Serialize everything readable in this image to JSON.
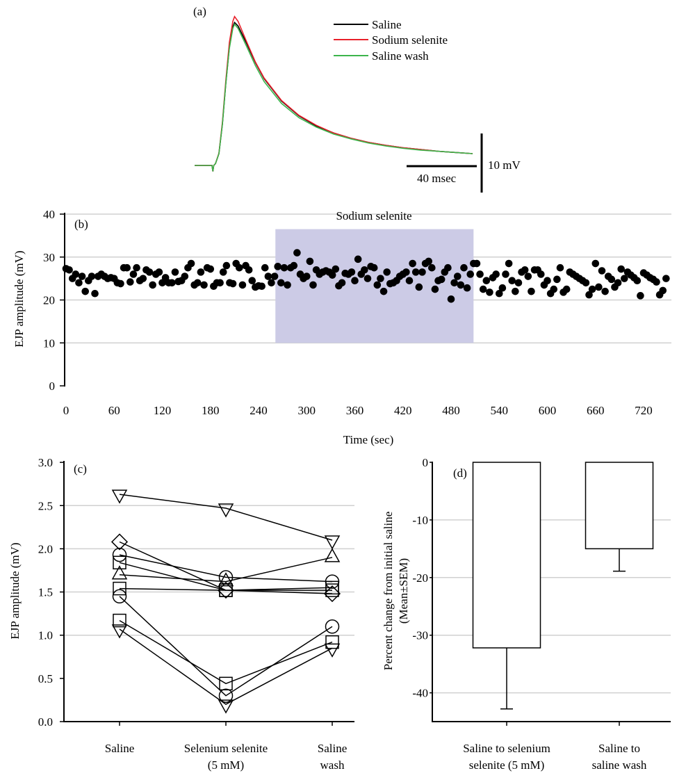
{
  "chart_data": [
    {
      "panel": "(a)",
      "type": "line",
      "legend": {
        "placement": "top-right",
        "entries": [
          "Saline",
          "Sodium selenite",
          "Saline wash"
        ]
      },
      "scale_bars": {
        "time_label": "40 msec",
        "time_value_ms": 40,
        "voltage_label": "10 mV",
        "voltage_value_mv": 10
      },
      "x": [
        -10,
        0,
        0.5,
        1,
        2,
        4,
        6,
        8,
        10,
        12,
        13,
        15,
        20,
        25,
        30,
        40,
        50,
        60,
        70,
        80,
        90,
        100,
        110,
        120,
        130,
        140,
        150
      ],
      "series": [
        {
          "name": "Saline",
          "color": "#000000",
          "values": [
            0,
            0,
            -1.0,
            0,
            0.3,
            2,
            7,
            14,
            20,
            23.5,
            24.2,
            23.6,
            20.6,
            17.4,
            14.7,
            10.9,
            8.4,
            6.7,
            5.5,
            4.6,
            3.9,
            3.4,
            3.0,
            2.7,
            2.4,
            2.2,
            2.0
          ]
        },
        {
          "name": "Sodium selenite",
          "color": "#e8202a",
          "values": [
            0,
            0,
            -1.0,
            0,
            0.3,
            2.1,
            7.3,
            14.5,
            20.8,
            24.4,
            25.2,
            24.4,
            20.9,
            17.5,
            14.8,
            11.0,
            8.5,
            6.8,
            5.5,
            4.6,
            3.9,
            3.4,
            3.0,
            2.7,
            2.4,
            2.2,
            2.0
          ]
        },
        {
          "name": "Saline wash",
          "color": "#3cb44b",
          "values": [
            0,
            0,
            -1.0,
            0,
            0.3,
            2,
            7,
            14,
            19.8,
            23.2,
            23.9,
            23.2,
            20.1,
            16.9,
            14.2,
            10.5,
            8.1,
            6.5,
            5.3,
            4.5,
            3.8,
            3.3,
            2.9,
            2.6,
            2.4,
            2.2,
            2.0
          ]
        }
      ]
    },
    {
      "panel": "(b)",
      "type": "scatter",
      "xlabel": "Time (sec)",
      "ylabel": "EJP amplitude (mV)",
      "xlim": [
        0,
        750
      ],
      "ylim": [
        0,
        40
      ],
      "xticks": [
        "0",
        "60",
        "120",
        "180",
        "240",
        "300",
        "360",
        "420",
        "480",
        "540",
        "600",
        "660",
        "720"
      ],
      "yticks": [
        "0",
        "10",
        "20",
        "30",
        "40"
      ],
      "grid": true,
      "shaded_region": {
        "label": "Sodium selenite",
        "x": [
          261,
          508
        ],
        "y": [
          10,
          36.5
        ],
        "color": "#cccbe6"
      },
      "x": [
        0,
        4,
        8,
        12,
        16,
        20,
        24,
        28,
        32,
        36,
        40,
        44,
        48,
        52,
        56,
        60,
        64,
        68,
        72,
        76,
        80,
        84,
        88,
        92,
        96,
        100,
        104,
        108,
        112,
        116,
        120,
        124,
        128,
        132,
        136,
        140,
        144,
        148,
        152,
        156,
        160,
        164,
        168,
        172,
        176,
        180,
        184,
        188,
        192,
        196,
        200,
        204,
        208,
        212,
        216,
        220,
        224,
        228,
        232,
        236,
        240,
        244,
        248,
        252,
        256,
        260,
        264,
        268,
        272,
        276,
        280,
        284,
        288,
        292,
        296,
        300,
        304,
        308,
        312,
        316,
        320,
        324,
        328,
        332,
        336,
        340,
        344,
        348,
        352,
        356,
        360,
        364,
        368,
        372,
        376,
        380,
        384,
        388,
        392,
        396,
        400,
        404,
        408,
        412,
        416,
        420,
        424,
        428,
        432,
        436,
        440,
        444,
        448,
        452,
        456,
        460,
        464,
        468,
        472,
        476,
        480,
        484,
        488,
        492,
        496,
        500,
        504,
        508,
        512,
        516,
        520,
        524,
        528,
        532,
        536,
        540,
        544,
        548,
        552,
        556,
        560,
        564,
        568,
        572,
        576,
        580,
        584,
        588,
        592,
        596,
        600,
        604,
        608,
        612,
        616,
        620,
        624,
        628,
        632,
        636,
        640,
        644,
        648,
        652,
        656,
        660,
        664,
        668,
        672,
        676,
        680,
        684,
        688,
        692,
        696,
        700,
        704,
        708,
        712,
        716,
        720,
        724,
        728,
        732,
        736,
        740,
        744,
        748
      ],
      "values": [
        27.3,
        27,
        25,
        26,
        24,
        25.5,
        22,
        24.5,
        25.5,
        21.5,
        25.5,
        26,
        25.5,
        25,
        25.2,
        25,
        24,
        23.8,
        27.5,
        27.5,
        24.2,
        26,
        27.5,
        24.5,
        25,
        27,
        26.5,
        23.5,
        26,
        26.5,
        24,
        25.2,
        24,
        24,
        26.5,
        24.3,
        24.5,
        25.5,
        27.5,
        28.5,
        23.5,
        24,
        26.5,
        23.5,
        27.5,
        27.2,
        23.2,
        24,
        24,
        26.5,
        28,
        24,
        23.8,
        28.5,
        27.5,
        23.5,
        28,
        27,
        24.5,
        23,
        23.3,
        23.2,
        27.5,
        25.5,
        24,
        25.5,
        27.8,
        24,
        27.5,
        23.5,
        27.5,
        28,
        31,
        26,
        25,
        25.5,
        29,
        23.5,
        27,
        26,
        26.5,
        26.8,
        26.5,
        25.8,
        27.2,
        23.3,
        24,
        26.2,
        26,
        26.5,
        24.5,
        29.5,
        26,
        27,
        25,
        27.8,
        27.5,
        23.5,
        25,
        22,
        26.5,
        23.8,
        24,
        24.5,
        25.5,
        26,
        26.5,
        24.5,
        28.5,
        26.5,
        23,
        26.5,
        28.5,
        29,
        27.5,
        22.5,
        24.5,
        24.8,
        26.5,
        27.5,
        20.2,
        24,
        25.5,
        23.5,
        27.5,
        22.8,
        26,
        28.5,
        28.5,
        26,
        22.5,
        24.5,
        21.8,
        25.2,
        26,
        21.5,
        22.8,
        26,
        28.5,
        24.5,
        22,
        24,
        26.5,
        27,
        25.5,
        22,
        27,
        27,
        26,
        23.5,
        24.5,
        21.5,
        22.5,
        24.8,
        27.5,
        21.8,
        22.5,
        26.5,
        26,
        25.5,
        25,
        24.5,
        24,
        21.2,
        22.5,
        28.5,
        23,
        26.8,
        22,
        25.5,
        24.8,
        23,
        24,
        27.2,
        25,
        26.5,
        25.8,
        25.2,
        24.5,
        21,
        26.3,
        25.8,
        25.2,
        24.8,
        24.2,
        21.2,
        22.2,
        25
      ]
    },
    {
      "panel": "(c)",
      "type": "line",
      "ylabel": "EJP amplitude (mV)",
      "ylim": [
        0,
        3.0
      ],
      "yticks": [
        "0.0",
        "0.5",
        "1.0",
        "1.5",
        "2.0",
        "2.5",
        "3.0"
      ],
      "grid": true,
      "categories": [
        [
          "Saline"
        ],
        [
          "Selenium selenite",
          "(5 mM)"
        ],
        [
          "Saline",
          "wash"
        ]
      ],
      "series": [
        {
          "marker": "triangle-down",
          "values": [
            2.63,
            2.47,
            2.1
          ]
        },
        {
          "marker": "triangle-up",
          "values": [
            1.7,
            1.62,
            1.9
          ]
        },
        {
          "marker": "diamond",
          "values": [
            2.08,
            1.52,
            1.48
          ]
        },
        {
          "marker": "circle",
          "values": [
            1.93,
            1.67,
            1.62
          ]
        },
        {
          "marker": "square",
          "values": [
            1.84,
            1.52,
            1.55
          ]
        },
        {
          "marker": "square",
          "values": [
            1.54,
            1.52,
            1.52
          ]
        },
        {
          "marker": "circle",
          "values": [
            1.45,
            0.3,
            1.1
          ]
        },
        {
          "marker": "square",
          "values": [
            1.17,
            0.44,
            0.92
          ]
        },
        {
          "marker": "triangle-down",
          "values": [
            1.07,
            0.2,
            0.85
          ]
        }
      ]
    },
    {
      "panel": "(d)",
      "type": "bar",
      "ylabel": [
        "Percent change from initial saline",
        "(Mean±SEM)"
      ],
      "ylim": [
        -45,
        0
      ],
      "yticks": [
        "0",
        "-10",
        "-20",
        "-30",
        "-40"
      ],
      "grid": true,
      "categories": [
        [
          "Saline to selenium",
          "selenite (5 mM)"
        ],
        [
          "Saline to",
          "saline wash"
        ]
      ],
      "values": [
        -32.2,
        -15.0
      ],
      "errors": [
        10.6,
        3.9
      ]
    }
  ]
}
